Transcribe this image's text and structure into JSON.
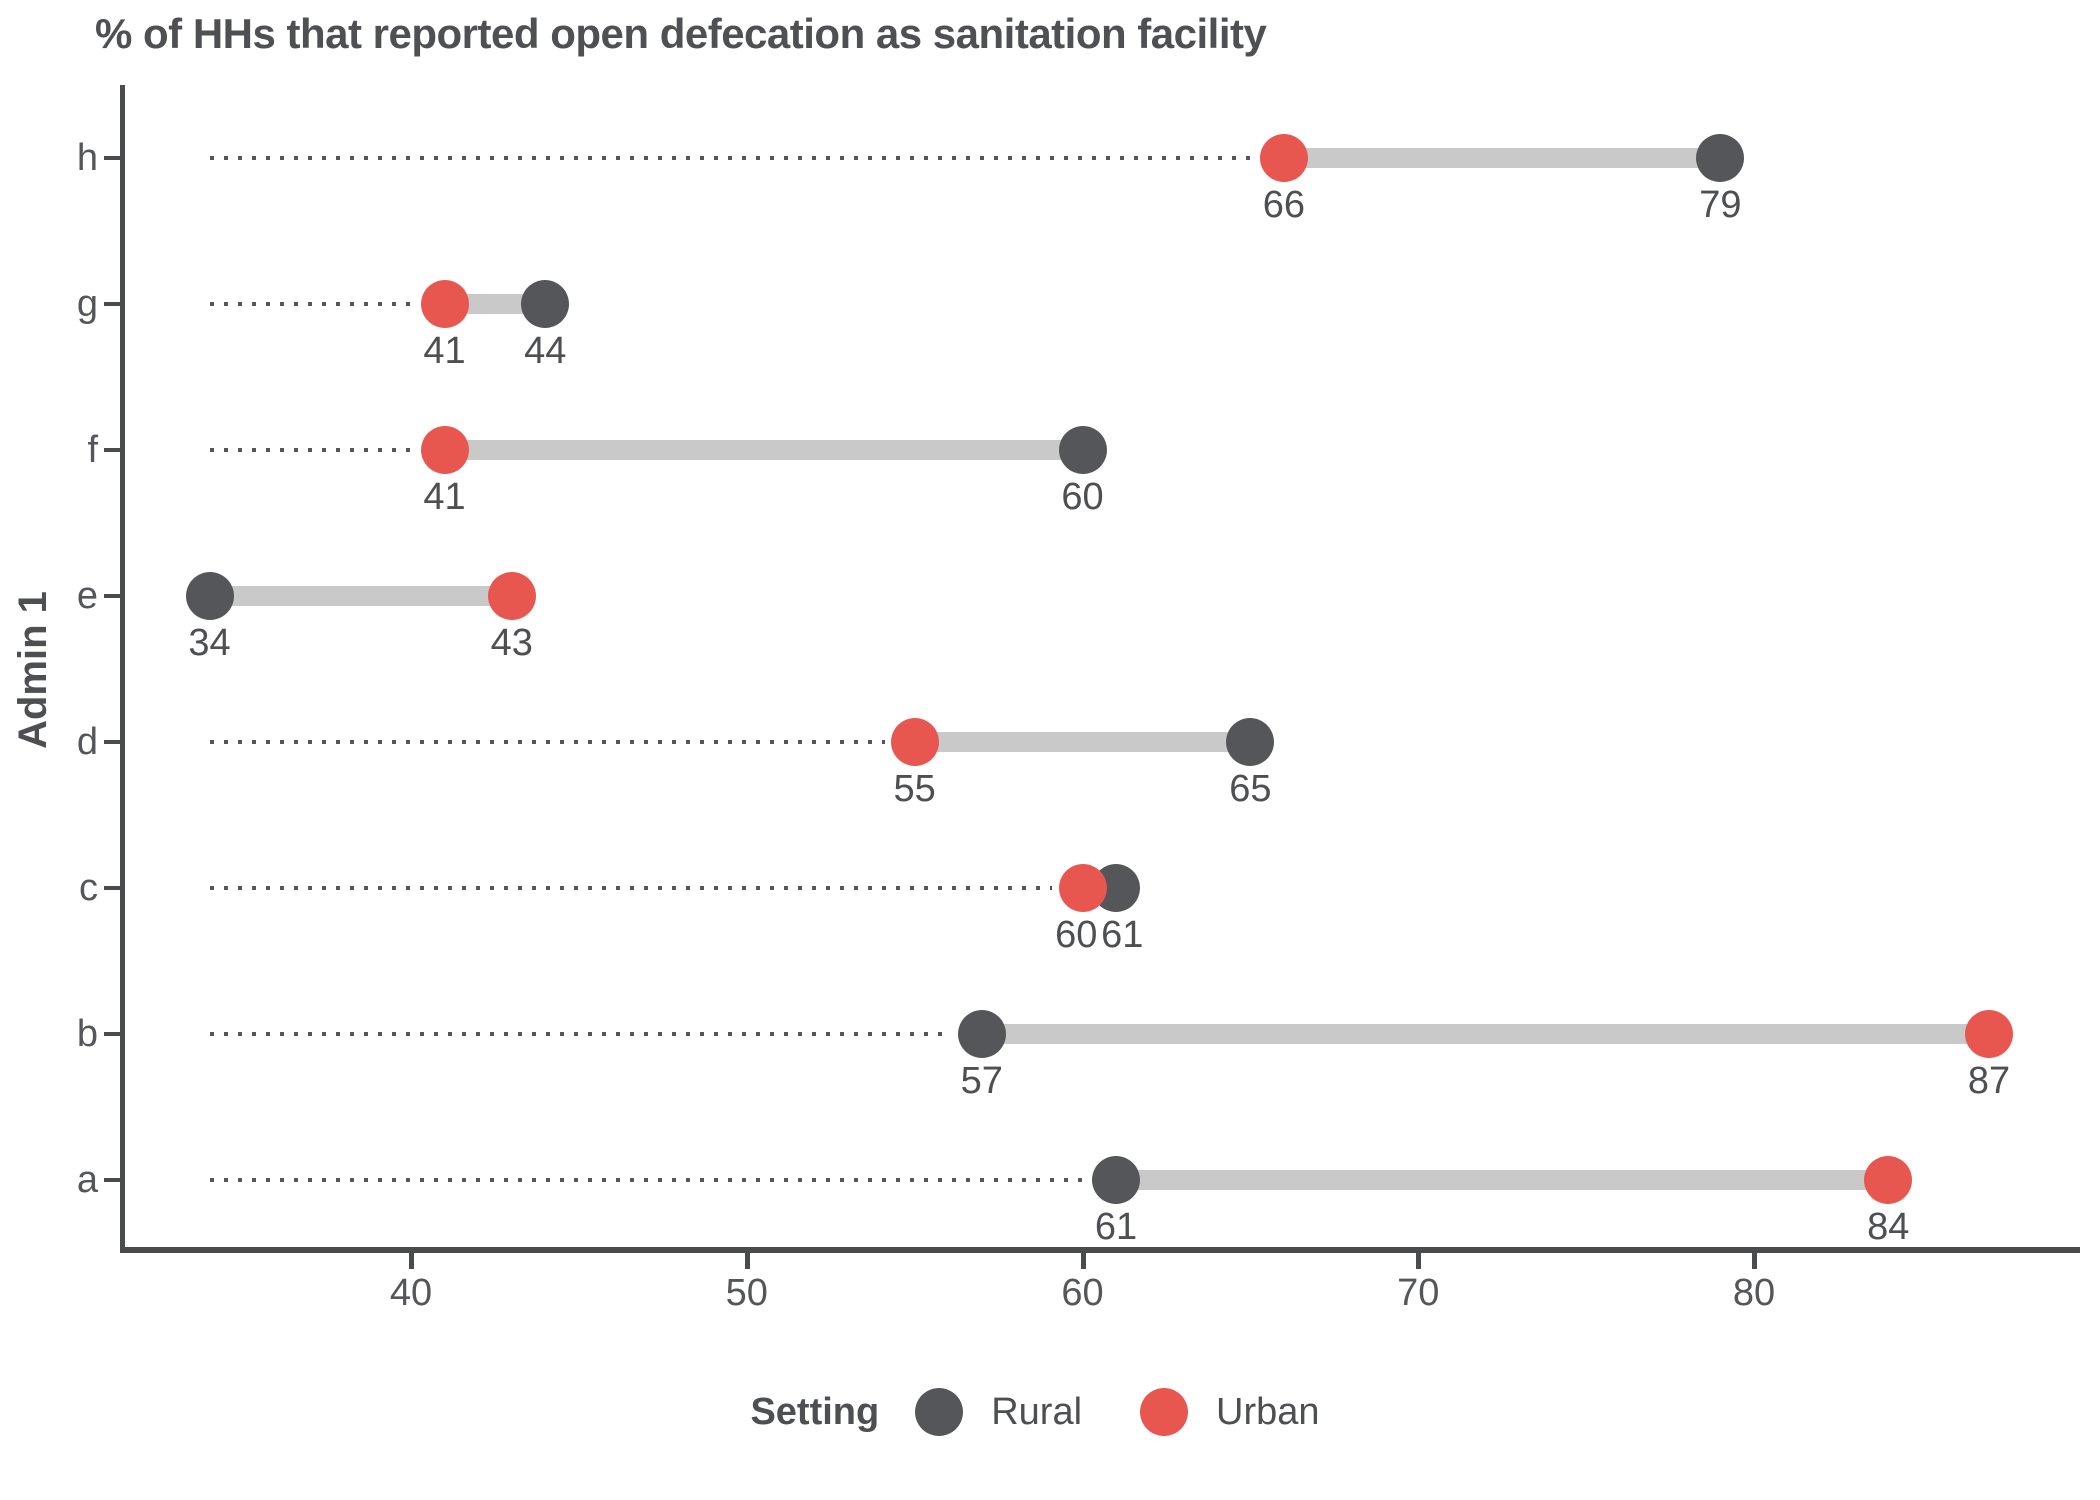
{
  "title": "% of HHs that reported open defecation as sanitation facility",
  "chart_data": {
    "type": "dumbbell",
    "title": "% of HHs that reported open defecation as sanitation facility",
    "xlabel": "",
    "ylabel": "Admin 1",
    "categories": [
      "h",
      "g",
      "f",
      "e",
      "d",
      "c",
      "b",
      "a"
    ],
    "series": [
      {
        "name": "Rural",
        "color": "#54565A",
        "values": [
          79,
          44,
          60,
          34,
          65,
          61,
          57,
          61
        ]
      },
      {
        "name": "Urban",
        "color": "#E8574F",
        "values": [
          66,
          41,
          41,
          43,
          55,
          60,
          87,
          84
        ]
      }
    ],
    "value_labels_shown": true,
    "x_ticks": [
      40,
      50,
      60,
      70,
      80
    ],
    "xlim": [
      31.3,
      89.7
    ],
    "guide_start": 34,
    "grid": false,
    "legend": {
      "title": "Setting",
      "position": "bottom",
      "entries": [
        "Rural",
        "Urban"
      ]
    },
    "connector_color": "#C9C9C9",
    "guide_dot_color": "#54565A",
    "axis_color": "#4A4B4D"
  }
}
